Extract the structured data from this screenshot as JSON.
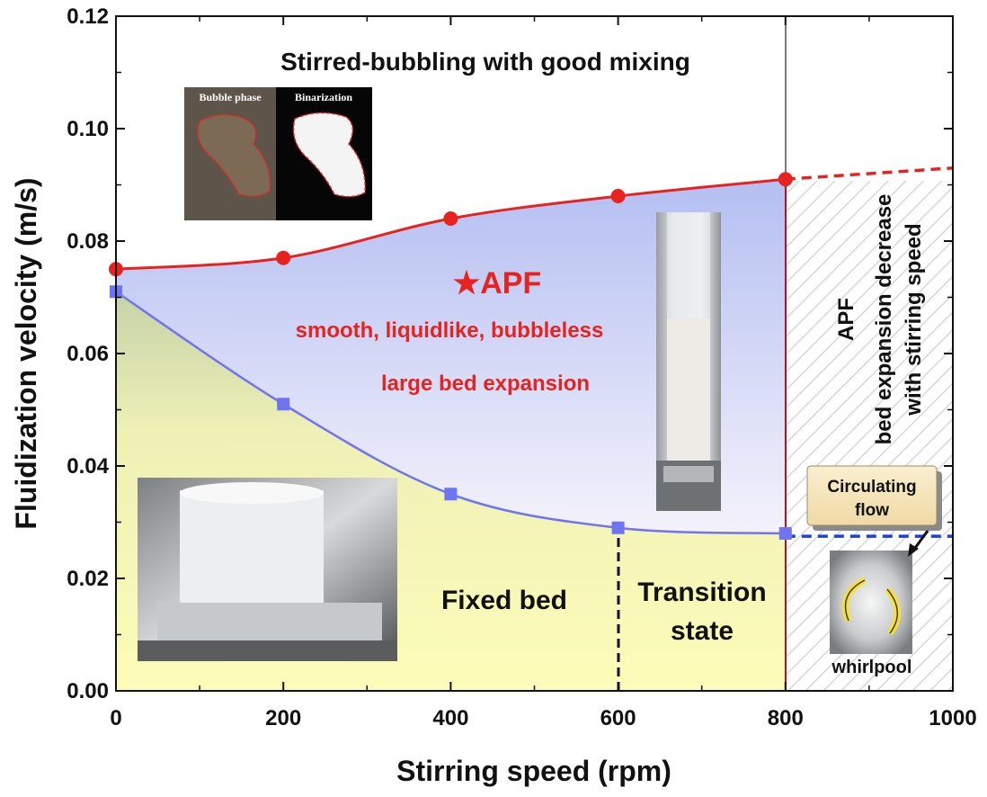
{
  "chart_data": {
    "type": "line",
    "xlabel": "Stirring speed (rpm)",
    "ylabel": "Fluidization velocity (m/s)",
    "xlim": [
      0,
      1000
    ],
    "ylim": [
      0,
      0.12
    ],
    "x_ticks": [
      "0",
      "200",
      "400",
      "600",
      "800",
      "1000"
    ],
    "y_ticks": [
      "0.00",
      "0.02",
      "0.04",
      "0.06",
      "0.08",
      "0.10",
      "0.12"
    ],
    "grid": false,
    "legend": "none",
    "series": [
      {
        "marker": "circle",
        "color": "#e8231f",
        "x": [
          0,
          200,
          400,
          600,
          800
        ],
        "y": [
          0.075,
          0.077,
          0.084,
          0.088,
          0.091
        ]
      },
      {
        "marker": "square",
        "color": "#6f74f0",
        "x": [
          0,
          200,
          400,
          600,
          800
        ],
        "y": [
          0.071,
          0.051,
          0.035,
          0.029,
          0.028
        ]
      }
    ],
    "extrapolations": [
      {
        "style": "dashed",
        "color": "#e8231f",
        "x": [
          800,
          1000
        ],
        "y": [
          0.091,
          0.093
        ]
      },
      {
        "style": "dashed",
        "color": "#1f3fd6",
        "x": [
          800,
          1000
        ],
        "y": [
          0.0275,
          0.0275
        ]
      }
    ],
    "boundaries": [
      {
        "x": 800,
        "color": "#b5121b",
        "from": 0,
        "to": 0.091
      },
      {
        "x": 800,
        "color": "#111111",
        "from": 0.091,
        "to": 0.12
      },
      {
        "x": 600,
        "color": "#111111",
        "style": "dashed",
        "from": 0,
        "to": 0.029
      }
    ],
    "annotations": {
      "top_region": "Stirred-bubbling with good mixing",
      "apf_star": "★APF",
      "apf_line1": "smooth, liquidlike, bubbleless",
      "apf_line2": "large bed expansion",
      "fixed_bed": "Fixed bed",
      "transition_line1": "Transition",
      "transition_line2": "state",
      "right_apf": "APF",
      "right_line1": "bed expansion decrease",
      "right_line2": "with stirring speed",
      "callout": "Circulating flow",
      "whirlpool": "whirlpool",
      "inset_bubble_phase": "Bubble phase",
      "inset_binarization": "Binarization"
    }
  }
}
